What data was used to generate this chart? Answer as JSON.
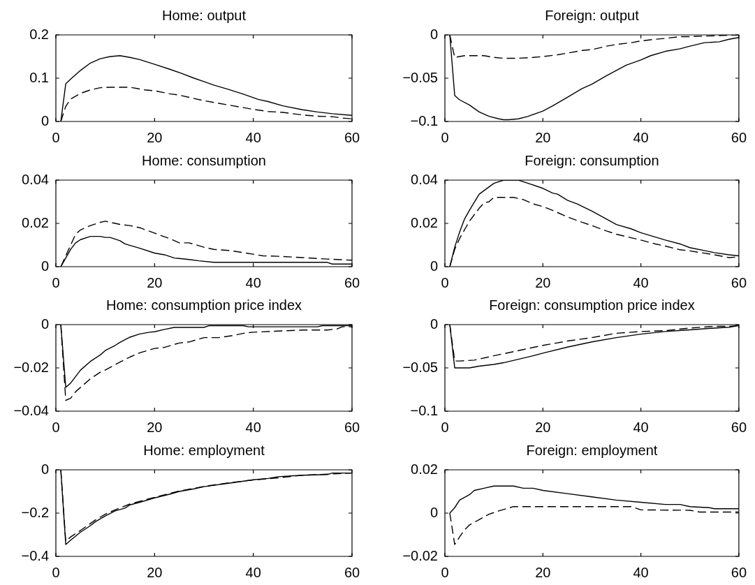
{
  "chart_data": [
    {
      "type": "line",
      "title": "Home: output",
      "xlim": [
        0,
        60
      ],
      "xticks": [
        0,
        20,
        40,
        60
      ],
      "ylim": [
        0,
        0.2
      ],
      "yticks": [
        0,
        0.1,
        0.2
      ],
      "series": [
        {
          "color": "#000000",
          "line_style": "solid",
          "x": [
            1,
            2,
            3,
            5,
            7,
            9,
            11,
            13,
            15,
            17,
            20,
            23,
            25,
            28,
            30,
            32,
            35,
            38,
            41,
            43,
            46,
            50,
            53,
            56,
            60
          ],
          "values": [
            0,
            0.087,
            0.098,
            0.118,
            0.135,
            0.145,
            0.15,
            0.152,
            0.148,
            0.143,
            0.132,
            0.121,
            0.113,
            0.1,
            0.092,
            0.084,
            0.074,
            0.063,
            0.051,
            0.046,
            0.036,
            0.027,
            0.022,
            0.018,
            0.014
          ]
        },
        {
          "color": "#000000",
          "line_style": "dashed",
          "x": [
            1,
            2,
            3,
            5,
            7,
            9,
            11,
            13,
            15,
            18,
            20,
            23,
            25,
            28,
            30,
            33,
            35,
            38,
            40,
            43,
            46,
            50,
            53,
            56,
            58,
            60
          ],
          "values": [
            0,
            0.035,
            0.052,
            0.065,
            0.073,
            0.078,
            0.079,
            0.079,
            0.079,
            0.073,
            0.071,
            0.064,
            0.061,
            0.053,
            0.048,
            0.042,
            0.038,
            0.032,
            0.028,
            0.023,
            0.021,
            0.015,
            0.012,
            0.011,
            0.008,
            0.006
          ]
        }
      ]
    },
    {
      "type": "line",
      "title": "Foreign: output",
      "xlim": [
        0,
        60
      ],
      "xticks": [
        0,
        20,
        40,
        60
      ],
      "ylim": [
        -0.1,
        0
      ],
      "yticks": [
        {
          "value": -0.1,
          "label": "−0.1"
        },
        {
          "value": -0.05,
          "label": "−0.05"
        },
        0
      ],
      "series": [
        {
          "color": "#000000",
          "line_style": "solid",
          "x": [
            1,
            2,
            3,
            5,
            7,
            9,
            11,
            12,
            13,
            15,
            17,
            20,
            22,
            25,
            28,
            30,
            33,
            35,
            37,
            40,
            42,
            45,
            48,
            50,
            53,
            56,
            58,
            60
          ],
          "values": [
            0,
            -0.07,
            -0.075,
            -0.081,
            -0.089,
            -0.094,
            -0.097,
            -0.098,
            -0.098,
            -0.097,
            -0.094,
            -0.088,
            -0.082,
            -0.072,
            -0.062,
            -0.057,
            -0.047,
            -0.041,
            -0.035,
            -0.029,
            -0.024,
            -0.019,
            -0.016,
            -0.013,
            -0.009,
            -0.008,
            -0.005,
            -0.003
          ]
        },
        {
          "color": "#000000",
          "line_style": "dashed",
          "x": [
            1,
            2,
            3,
            4,
            8,
            10,
            12,
            15,
            18,
            20,
            23,
            25,
            28,
            30,
            33,
            35,
            38,
            40,
            43,
            45,
            48,
            50,
            55,
            60
          ],
          "values": [
            0,
            -0.026,
            -0.025,
            -0.024,
            -0.024,
            -0.026,
            -0.027,
            -0.027,
            -0.026,
            -0.025,
            -0.023,
            -0.021,
            -0.018,
            -0.017,
            -0.013,
            -0.011,
            -0.009,
            -0.007,
            -0.005,
            -0.004,
            -0.002,
            -0.002,
            -0.001,
            0
          ]
        }
      ]
    },
    {
      "type": "line",
      "title": "Home: consumption",
      "xlim": [
        0,
        60
      ],
      "xticks": [
        0,
        20,
        40,
        60
      ],
      "ylim": [
        0,
        0.04
      ],
      "yticks": [
        0,
        0.02,
        0.04
      ],
      "series": [
        {
          "color": "#000000",
          "line_style": "solid",
          "x": [
            1,
            2,
            3,
            4,
            5,
            7,
            9,
            10,
            11,
            13,
            14,
            17,
            20,
            22,
            24,
            27,
            29,
            32,
            40,
            50,
            55,
            56,
            60
          ],
          "values": [
            0,
            0.004,
            0.008,
            0.011,
            0.0125,
            0.014,
            0.014,
            0.0135,
            0.0135,
            0.012,
            0.0105,
            0.0085,
            0.0063,
            0.0055,
            0.004,
            0.0033,
            0.0027,
            0.002,
            0.002,
            0.002,
            0.002,
            0.0012,
            0.0012
          ]
        },
        {
          "color": "#000000",
          "line_style": "dashed",
          "x": [
            1,
            2,
            3,
            4,
            5,
            7,
            9,
            10,
            11,
            13,
            15,
            17,
            20,
            23,
            25,
            27,
            30,
            32,
            35,
            38,
            42,
            45,
            50,
            55,
            60
          ],
          "values": [
            0,
            0.005,
            0.01,
            0.015,
            0.017,
            0.019,
            0.0205,
            0.021,
            0.0205,
            0.0195,
            0.019,
            0.018,
            0.0155,
            0.013,
            0.011,
            0.011,
            0.009,
            0.008,
            0.0075,
            0.0065,
            0.005,
            0.0048,
            0.0042,
            0.0035,
            0.003
          ]
        }
      ]
    },
    {
      "type": "line",
      "title": "Foreign: consumption",
      "xlim": [
        0,
        60
      ],
      "xticks": [
        0,
        20,
        40,
        60
      ],
      "ylim": [
        0,
        0.04
      ],
      "yticks": [
        0,
        0.02,
        0.04
      ],
      "series": [
        {
          "color": "#000000",
          "line_style": "solid",
          "x": [
            1,
            2,
            3,
            4,
            5,
            7,
            10,
            12,
            15,
            17,
            20,
            22,
            23,
            25,
            27,
            30,
            33,
            35,
            38,
            40,
            45,
            48,
            50,
            55,
            58,
            60
          ],
          "values": [
            0,
            0.009,
            0.016,
            0.022,
            0.026,
            0.0335,
            0.0385,
            0.04,
            0.04,
            0.0385,
            0.0362,
            0.034,
            0.0335,
            0.0307,
            0.029,
            0.0257,
            0.022,
            0.0195,
            0.0175,
            0.0157,
            0.0123,
            0.0105,
            0.0088,
            0.0065,
            0.0055,
            0.005
          ]
        },
        {
          "color": "#000000",
          "line_style": "dashed",
          "x": [
            1,
            2,
            3,
            5,
            7,
            8,
            9,
            10,
            12,
            14,
            16,
            18,
            20,
            22,
            25,
            28,
            30,
            33,
            35,
            40,
            43,
            45,
            48,
            50,
            55,
            58,
            60
          ],
          "values": [
            0,
            0.008,
            0.013,
            0.021,
            0.027,
            0.0295,
            0.03,
            0.032,
            0.032,
            0.032,
            0.031,
            0.029,
            0.0278,
            0.026,
            0.023,
            0.0205,
            0.019,
            0.0165,
            0.015,
            0.0123,
            0.0105,
            0.0095,
            0.0078,
            0.0073,
            0.0055,
            0.0042,
            0.0045
          ]
        }
      ]
    },
    {
      "type": "line",
      "title": "Home: consumption price index",
      "xlim": [
        0,
        60
      ],
      "xticks": [
        0,
        20,
        40,
        60
      ],
      "ylim": [
        -0.04,
        0
      ],
      "yticks": [
        {
          "value": -0.04,
          "label": "−0.04"
        },
        {
          "value": -0.02,
          "label": "−0.02"
        },
        0
      ],
      "series": [
        {
          "color": "#000000",
          "line_style": "solid",
          "x": [
            1,
            2,
            3,
            4,
            5,
            7,
            9,
            10,
            12,
            13,
            15,
            17,
            19,
            20,
            22,
            24,
            30,
            31,
            38,
            39,
            53,
            54,
            60
          ],
          "values": [
            0,
            -0.029,
            -0.027,
            -0.024,
            -0.021,
            -0.017,
            -0.014,
            -0.012,
            -0.0096,
            -0.0082,
            -0.0058,
            -0.0043,
            -0.0035,
            -0.0033,
            -0.0022,
            -0.0013,
            -0.0013,
            -0.0005,
            -0.0005,
            -0.001,
            -0.001,
            -0.0005,
            -0.0005
          ]
        },
        {
          "color": "#000000",
          "line_style": "dashed",
          "x": [
            1,
            2,
            3,
            4,
            5,
            7,
            9,
            10,
            12,
            15,
            17,
            20,
            22,
            25,
            27,
            30,
            33,
            36,
            38,
            40,
            45,
            50,
            55,
            57,
            58,
            60
          ],
          "values": [
            0,
            -0.035,
            -0.034,
            -0.031,
            -0.029,
            -0.025,
            -0.022,
            -0.021,
            -0.0185,
            -0.015,
            -0.013,
            -0.011,
            -0.0105,
            -0.0085,
            -0.008,
            -0.006,
            -0.006,
            -0.005,
            -0.004,
            -0.0035,
            -0.003,
            -0.0025,
            -0.0025,
            -0.002,
            -0.001,
            -0.001
          ]
        }
      ]
    },
    {
      "type": "line",
      "title": "Foreign: consumption price index",
      "xlim": [
        0,
        60
      ],
      "xticks": [
        0,
        20,
        40,
        60
      ],
      "ylim": [
        -0.1,
        0
      ],
      "yticks": [
        {
          "value": -0.1,
          "label": "−0.1"
        },
        {
          "value": -0.05,
          "label": "−0.05"
        },
        0
      ],
      "series": [
        {
          "color": "#000000",
          "line_style": "solid",
          "x": [
            1,
            2,
            5,
            7,
            10,
            12,
            15,
            18,
            20,
            25,
            30,
            35,
            40,
            45,
            50,
            55,
            58,
            60
          ],
          "values": [
            0,
            -0.05,
            -0.05,
            -0.048,
            -0.046,
            -0.044,
            -0.04,
            -0.036,
            -0.033,
            -0.026,
            -0.02,
            -0.015,
            -0.011,
            -0.008,
            -0.006,
            -0.004,
            -0.003,
            -0.001
          ]
        },
        {
          "color": "#000000",
          "line_style": "dashed",
          "x": [
            1,
            2,
            3,
            6,
            10,
            15,
            20,
            25,
            30,
            35,
            40,
            45,
            50,
            55,
            58,
            60
          ],
          "values": [
            0,
            -0.042,
            -0.042,
            -0.041,
            -0.036,
            -0.03,
            -0.024,
            -0.019,
            -0.015,
            -0.01,
            -0.008,
            -0.007,
            -0.004,
            -0.002,
            -0.002,
            -0.001
          ]
        }
      ]
    },
    {
      "type": "line",
      "title": "Home: employment",
      "xlim": [
        0,
        60
      ],
      "xticks": [
        0,
        20,
        40,
        60
      ],
      "ylim": [
        -0.4,
        0
      ],
      "yticks": [
        {
          "value": -0.4,
          "label": "−0.4"
        },
        {
          "value": -0.2,
          "label": "−0.2"
        },
        0
      ],
      "series": [
        {
          "color": "#000000",
          "line_style": "solid",
          "x": [
            1,
            2,
            3,
            5,
            7,
            8,
            10,
            12,
            14,
            15,
            17,
            20,
            23,
            25,
            28,
            30,
            35,
            40,
            43,
            45,
            50,
            55,
            56,
            60
          ],
          "values": [
            0,
            -0.345,
            -0.325,
            -0.288,
            -0.258,
            -0.24,
            -0.213,
            -0.19,
            -0.177,
            -0.162,
            -0.15,
            -0.13,
            -0.113,
            -0.1,
            -0.088,
            -0.078,
            -0.062,
            -0.046,
            -0.04,
            -0.032,
            -0.025,
            -0.022,
            -0.015,
            -0.015
          ]
        },
        {
          "color": "#000000",
          "line_style": "dashed",
          "x": [
            1,
            2,
            3,
            5,
            8,
            10,
            12,
            15,
            20,
            25,
            30,
            35,
            40,
            45,
            50,
            55,
            60
          ],
          "values": [
            0,
            -0.33,
            -0.31,
            -0.28,
            -0.232,
            -0.205,
            -0.185,
            -0.158,
            -0.127,
            -0.098,
            -0.077,
            -0.06,
            -0.047,
            -0.037,
            -0.025,
            -0.02,
            -0.015
          ]
        }
      ]
    },
    {
      "type": "line",
      "title": "Foreign: employment",
      "xlim": [
        0,
        60
      ],
      "xticks": [
        0,
        20,
        40,
        60
      ],
      "ylim": [
        -0.02,
        0.02
      ],
      "yticks": [
        {
          "value": -0.02,
          "label": "−0.02"
        },
        0,
        0.02
      ],
      "series": [
        {
          "color": "#000000",
          "line_style": "solid",
          "x": [
            1,
            2,
            3,
            5,
            6,
            8,
            10,
            14,
            16,
            18,
            20,
            25,
            30,
            35,
            40,
            45,
            48,
            50,
            54,
            55,
            60
          ],
          "values": [
            0,
            0.0025,
            0.006,
            0.0085,
            0.0105,
            0.0115,
            0.0125,
            0.0125,
            0.0115,
            0.0115,
            0.0105,
            0.009,
            0.0075,
            0.006,
            0.005,
            0.004,
            0.004,
            0.003,
            0.0025,
            0.002,
            0.002
          ]
        },
        {
          "color": "#000000",
          "line_style": "dashed",
          "x": [
            1,
            2,
            3,
            4,
            5,
            7,
            9,
            11,
            14,
            20,
            30,
            38,
            40,
            50,
            52,
            60
          ],
          "values": [
            0,
            -0.0145,
            -0.011,
            -0.0078,
            -0.0055,
            -0.003,
            -0.0005,
            0.001,
            0.003,
            0.003,
            0.003,
            0.003,
            0.0015,
            0.0013,
            0.0005,
            0.0005
          ]
        }
      ]
    }
  ]
}
